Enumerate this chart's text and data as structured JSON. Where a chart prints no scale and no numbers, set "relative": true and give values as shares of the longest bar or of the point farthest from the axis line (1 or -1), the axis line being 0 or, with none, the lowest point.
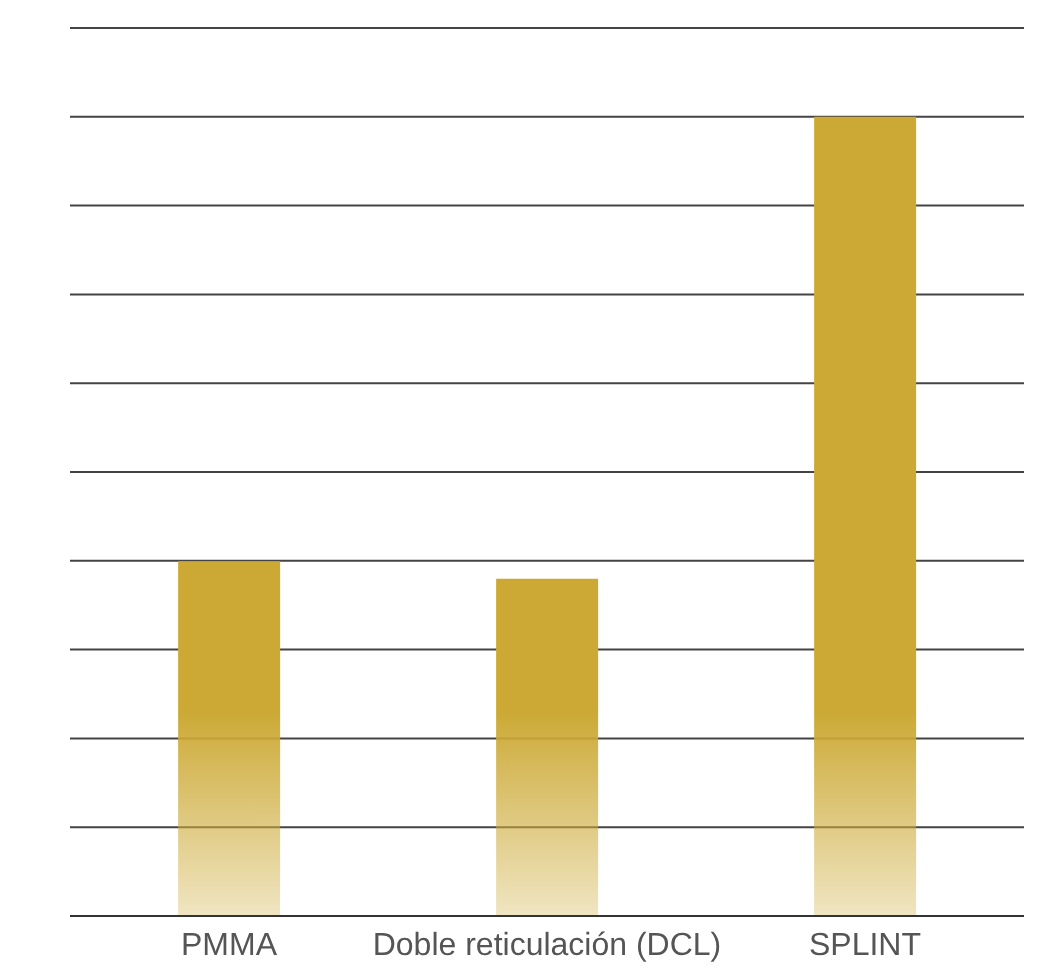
{
  "chart_data": {
    "type": "bar",
    "relative": true,
    "categories": [
      "PMMA",
      "Doble reticulación (DCL)",
      "SPLINT"
    ],
    "values": [
      0.444,
      0.422,
      1
    ],
    "color": "#cca935",
    "grid": "y"
  }
}
